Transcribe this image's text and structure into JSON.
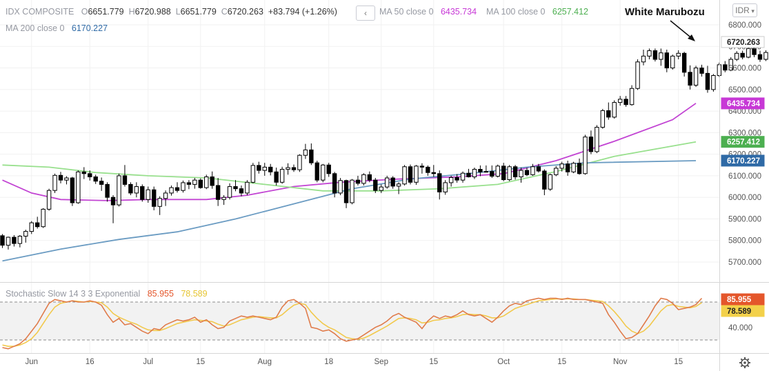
{
  "header": {
    "symbol": "IDX COMPOSITE",
    "open_label": "O",
    "open": "6651.779",
    "high_label": "H",
    "high": "6720.988",
    "low_label": "L",
    "low": "6651.779",
    "close_label": "C",
    "close": "6720.263",
    "change": "+83.794 (+1.26%)",
    "collapse_icon": "chevron-left-icon",
    "ma50_label": "MA 50 close 0",
    "ma50_value": "6435.734",
    "ma100_label": "MA 100 close 0",
    "ma100_value": "6257.412",
    "ma200_label": "MA 200 close 0",
    "ma200_value": "6170.227",
    "currency": "IDR"
  },
  "annotation": "White Marubozu",
  "stochastic": {
    "label": "Stochastic Slow 14 3 3 Exponential",
    "k_value": "85.955",
    "d_value": "78.589"
  },
  "footer": {
    "settings_icon": "gear-icon"
  },
  "colors": {
    "up": "#ffffff",
    "down": "#000000",
    "ma50": "#c244d3",
    "ma100": "#98e08d",
    "ma200": "#6a9bc2",
    "stoch_k": "#e07b4a",
    "stoch_d": "#f2c94c",
    "label_ma50": "#c738d6",
    "label_ma100": "#4caf50",
    "label_ma200": "#2f6aa6",
    "label_k": "#e4562b",
    "label_d": "#f3d14a"
  },
  "chart_data": {
    "type": "candlestick",
    "y_ticks": [
      5700,
      5800,
      5900,
      6000,
      6100,
      6200,
      6300,
      6400,
      6500,
      6600,
      6700,
      6800
    ],
    "y_tick_labels": [
      "5700.000",
      "5800.000",
      "5900.000",
      "6000.000",
      "6100.000",
      "6200.000",
      "6300.000",
      "6400.000",
      "6500.000",
      "6600.000",
      "6700.000",
      "6800.000"
    ],
    "ylim": [
      5640,
      6880
    ],
    "x_tick_labels": [
      {
        "label": "Jun",
        "i": 5
      },
      {
        "label": "16",
        "i": 15
      },
      {
        "label": "Jul",
        "i": 25
      },
      {
        "label": "15",
        "i": 34
      },
      {
        "label": "Aug",
        "i": 45
      },
      {
        "label": "18",
        "i": 56
      },
      {
        "label": "Sep",
        "i": 65
      },
      {
        "label": "15",
        "i": 74
      },
      {
        "label": "Oct",
        "i": 86
      },
      {
        "label": "15",
        "i": 96
      },
      {
        "label": "Nov",
        "i": 106
      },
      {
        "label": "15",
        "i": 116
      }
    ],
    "candles": [
      [
        5822,
        5830,
        5765,
        5778
      ],
      [
        5778,
        5818,
        5758,
        5815
      ],
      [
        5815,
        5825,
        5772,
        5786
      ],
      [
        5786,
        5825,
        5768,
        5820
      ],
      [
        5820,
        5850,
        5790,
        5842
      ],
      [
        5842,
        5890,
        5830,
        5882
      ],
      [
        5882,
        5910,
        5855,
        5864
      ],
      [
        5864,
        5950,
        5858,
        5945
      ],
      [
        5945,
        6040,
        5938,
        6032
      ],
      [
        6032,
        6110,
        6020,
        6102
      ],
      [
        6102,
        6118,
        6065,
        6080
      ],
      [
        6080,
        6098,
        6060,
        6090
      ],
      [
        6090,
        6095,
        5960,
        5975
      ],
      [
        5975,
        6125,
        5970,
        6118
      ],
      [
        6118,
        6140,
        6085,
        6110
      ],
      [
        6110,
        6125,
        6078,
        6095
      ],
      [
        6095,
        6105,
        6062,
        6075
      ],
      [
        6075,
        6092,
        6030,
        6060
      ],
      [
        6060,
        6070,
        5980,
        6000
      ],
      [
        6000,
        6010,
        5880,
        5965
      ],
      [
        5965,
        6110,
        5958,
        6100
      ],
      [
        6100,
        6150,
        6050,
        6060
      ],
      [
        6060,
        6070,
        6010,
        6020
      ],
      [
        6020,
        6070,
        6000,
        6050
      ],
      [
        6050,
        6060,
        5980,
        5990
      ],
      [
        5990,
        6050,
        5975,
        6035
      ],
      [
        6035,
        6050,
        5940,
        5958
      ],
      [
        5958,
        6005,
        5918,
        5995
      ],
      [
        5995,
        6032,
        5960,
        6020
      ],
      [
        6020,
        6055,
        6008,
        6045
      ],
      [
        6045,
        6070,
        6022,
        6032
      ],
      [
        6032,
        6078,
        6022,
        6068
      ],
      [
        6068,
        6080,
        6038,
        6060
      ],
      [
        6060,
        6090,
        6040,
        6080
      ],
      [
        6080,
        6088,
        6040,
        6045
      ],
      [
        6045,
        6105,
        6038,
        6095
      ],
      [
        6095,
        6120,
        6040,
        6055
      ],
      [
        6055,
        6090,
        5960,
        5990
      ],
      [
        5990,
        6010,
        5965,
        6000
      ],
      [
        6000,
        6065,
        5990,
        6050
      ],
      [
        6050,
        6080,
        6028,
        6040
      ],
      [
        6040,
        6055,
        6005,
        6020
      ],
      [
        6020,
        6080,
        6010,
        6070
      ],
      [
        6070,
        6160,
        6065,
        6148
      ],
      [
        6148,
        6165,
        6110,
        6125
      ],
      [
        6125,
        6160,
        6100,
        6140
      ],
      [
        6140,
        6155,
        6102,
        6118
      ],
      [
        6118,
        6138,
        6055,
        6070
      ],
      [
        6070,
        6142,
        6063,
        6130
      ],
      [
        6130,
        6158,
        6105,
        6138
      ],
      [
        6138,
        6152,
        6118,
        6128
      ],
      [
        6128,
        6200,
        6118,
        6195
      ],
      [
        6195,
        6248,
        6178,
        6220
      ],
      [
        6220,
        6250,
        6150,
        6160
      ],
      [
        6160,
        6170,
        6070,
        6080
      ],
      [
        6080,
        6155,
        6070,
        6150
      ],
      [
        6150,
        6160,
        6095,
        6110
      ],
      [
        6110,
        6118,
        6000,
        6020
      ],
      [
        6020,
        6090,
        6010,
        6078
      ],
      [
        6078,
        6082,
        5950,
        5975
      ],
      [
        5975,
        6085,
        5968,
        6080
      ],
      [
        6080,
        6100,
        6055,
        6065
      ],
      [
        6065,
        6112,
        6055,
        6105
      ],
      [
        6105,
        6120,
        6070,
        6080
      ],
      [
        6080,
        6090,
        6020,
        6032
      ],
      [
        6032,
        6060,
        6020,
        6048
      ],
      [
        6048,
        6100,
        6040,
        6090
      ],
      [
        6090,
        6098,
        6040,
        6052
      ],
      [
        6052,
        6070,
        6015,
        6062
      ],
      [
        6062,
        6150,
        6055,
        6142
      ],
      [
        6142,
        6152,
        6060,
        6070
      ],
      [
        6070,
        6150,
        6058,
        6145
      ],
      [
        6145,
        6158,
        6110,
        6140
      ],
      [
        6140,
        6148,
        6100,
        6115
      ],
      [
        6115,
        6150,
        6095,
        6110
      ],
      [
        6110,
        6125,
        5990,
        6025
      ],
      [
        6025,
        6080,
        6012,
        6068
      ],
      [
        6068,
        6100,
        6050,
        6092
      ],
      [
        6092,
        6108,
        6068,
        6080
      ],
      [
        6080,
        6120,
        6068,
        6112
      ],
      [
        6112,
        6132,
        6092,
        6095
      ],
      [
        6095,
        6138,
        6085,
        6130
      ],
      [
        6130,
        6148,
        6098,
        6118
      ],
      [
        6118,
        6148,
        6115,
        6120
      ],
      [
        6120,
        6148,
        6090,
        6098
      ],
      [
        6098,
        6152,
        6092,
        6145
      ],
      [
        6145,
        6160,
        6075,
        6082
      ],
      [
        6082,
        6150,
        6075,
        6142
      ],
      [
        6142,
        6150,
        6082,
        6095
      ],
      [
        6095,
        6138,
        6068,
        6125
      ],
      [
        6125,
        6138,
        6098,
        6105
      ],
      [
        6105,
        6155,
        6100,
        6142
      ],
      [
        6142,
        6155,
        6115,
        6122
      ],
      [
        6122,
        6130,
        6010,
        6038
      ],
      [
        6038,
        6110,
        6030,
        6105
      ],
      [
        6105,
        6145,
        6098,
        6135
      ],
      [
        6135,
        6165,
        6120,
        6155
      ],
      [
        6155,
        6170,
        6100,
        6118
      ],
      [
        6118,
        6165,
        6112,
        6158
      ],
      [
        6158,
        6180,
        6105,
        6110
      ],
      [
        6110,
        6290,
        6105,
        6280
      ],
      [
        6280,
        6310,
        6200,
        6212
      ],
      [
        6212,
        6335,
        6205,
        6325
      ],
      [
        6325,
        6410,
        6318,
        6402
      ],
      [
        6402,
        6440,
        6360,
        6372
      ],
      [
        6372,
        6450,
        6365,
        6440
      ],
      [
        6440,
        6470,
        6425,
        6455
      ],
      [
        6455,
        6470,
        6420,
        6430
      ],
      [
        6430,
        6520,
        6425,
        6505
      ],
      [
        6505,
        6640,
        6498,
        6628
      ],
      [
        6628,
        6685,
        6612,
        6655
      ],
      [
        6655,
        6690,
        6640,
        6680
      ],
      [
        6680,
        6690,
        6630,
        6640
      ],
      [
        6640,
        6690,
        6610,
        6670
      ],
      [
        6670,
        6685,
        6580,
        6600
      ],
      [
        6600,
        6662,
        6592,
        6655
      ],
      [
        6655,
        6682,
        6640,
        6668
      ],
      [
        6668,
        6675,
        6560,
        6580
      ],
      [
        6580,
        6612,
        6500,
        6520
      ],
      [
        6520,
        6610,
        6512,
        6600
      ],
      [
        6600,
        6615,
        6560,
        6575
      ],
      [
        6575,
        6610,
        6485,
        6500
      ],
      [
        6500,
        6572,
        6490,
        6565
      ],
      [
        6565,
        6625,
        6558,
        6615
      ],
      [
        6615,
        6632,
        6580,
        6590
      ],
      [
        6590,
        6650,
        6585,
        6640
      ],
      [
        6640,
        6678,
        6632,
        6668
      ],
      [
        6668,
        6680,
        6640,
        6650
      ],
      [
        6650,
        6702,
        6645,
        6690
      ],
      [
        6690,
        6712,
        6650,
        6662
      ],
      [
        6662,
        6680,
        6628,
        6640
      ],
      [
        6640,
        6682,
        6632,
        6672
      ],
      [
        6672,
        6680,
        6615,
        6630
      ],
      [
        6630,
        6662,
        6610,
        6652
      ],
      [
        6652,
        6721,
        6652,
        6720
      ]
    ],
    "ma_series": [
      {
        "name": "MA 50 close 0",
        "value_label": "6435.734",
        "points": [
          [
            0,
            6080
          ],
          [
            5,
            6020
          ],
          [
            10,
            5990
          ],
          [
            18,
            5985
          ],
          [
            25,
            5990
          ],
          [
            35,
            5990
          ],
          [
            42,
            6010
          ],
          [
            50,
            6050
          ],
          [
            58,
            6070
          ],
          [
            68,
            6085
          ],
          [
            78,
            6095
          ],
          [
            86,
            6110
          ],
          [
            95,
            6170
          ],
          [
            105,
            6260
          ],
          [
            115,
            6360
          ],
          [
            119,
            6436
          ]
        ]
      },
      {
        "name": "MA 100 close 0",
        "value_label": "6257.412",
        "points": [
          [
            0,
            6150
          ],
          [
            8,
            6140
          ],
          [
            16,
            6115
          ],
          [
            25,
            6100
          ],
          [
            35,
            6090
          ],
          [
            45,
            6060
          ],
          [
            55,
            6030
          ],
          [
            65,
            6030
          ],
          [
            75,
            6040
          ],
          [
            85,
            6060
          ],
          [
            95,
            6120
          ],
          [
            105,
            6190
          ],
          [
            119,
            6257
          ]
        ]
      },
      {
        "name": "MA 200 close 0",
        "value_label": "6170.227",
        "points": [
          [
            0,
            5705
          ],
          [
            10,
            5760
          ],
          [
            20,
            5805
          ],
          [
            30,
            5840
          ],
          [
            40,
            5900
          ],
          [
            50,
            5970
          ],
          [
            60,
            6040
          ],
          [
            70,
            6085
          ],
          [
            80,
            6110
          ],
          [
            90,
            6140
          ],
          [
            100,
            6160
          ],
          [
            119,
            6170
          ]
        ]
      }
    ],
    "stochastic": {
      "ylim": [
        0,
        100
      ],
      "levels": [
        80,
        20
      ],
      "y_tick": 40,
      "y_tick_label": "40.000",
      "k": [
        8,
        6,
        10,
        14,
        22,
        34,
        46,
        62,
        78,
        84,
        82,
        80,
        82,
        80,
        80,
        82,
        80,
        75,
        60,
        48,
        54,
        44,
        46,
        40,
        34,
        30,
        38,
        36,
        44,
        48,
        52,
        50,
        52,
        56,
        48,
        52,
        44,
        38,
        40,
        50,
        54,
        58,
        56,
        58,
        56,
        54,
        52,
        56,
        72,
        82,
        84,
        78,
        70,
        40,
        38,
        34,
        36,
        30,
        22,
        18,
        20,
        22,
        28,
        34,
        40,
        44,
        50,
        58,
        62,
        56,
        52,
        48,
        38,
        50,
        58,
        54,
        58,
        56,
        60,
        66,
        60,
        58,
        60,
        54,
        48,
        56,
        66,
        74,
        78,
        76,
        82,
        84,
        86,
        84,
        86,
        86,
        84,
        86,
        84,
        84,
        84,
        82,
        80,
        78,
        60,
        48,
        34,
        22,
        24,
        30,
        44,
        58,
        74,
        86,
        84,
        78,
        68,
        70,
        72,
        76,
        86
      ],
      "d": [
        12,
        10,
        10,
        12,
        16,
        22,
        32,
        46,
        60,
        72,
        78,
        80,
        82,
        81,
        80,
        81,
        80,
        79,
        72,
        62,
        56,
        52,
        48,
        45,
        40,
        36,
        35,
        35,
        38,
        42,
        46,
        48,
        50,
        52,
        51,
        50,
        49,
        45,
        42,
        44,
        48,
        52,
        54,
        56,
        57,
        56,
        55,
        55,
        60,
        68,
        75,
        78,
        76,
        64,
        54,
        46,
        40,
        36,
        30,
        24,
        22,
        21,
        23,
        27,
        32,
        37,
        42,
        48,
        54,
        55,
        54,
        52,
        47,
        48,
        51,
        52,
        54,
        55,
        57,
        60,
        61,
        60,
        60,
        58,
        55,
        55,
        58,
        64,
        70,
        73,
        76,
        79,
        82,
        83,
        84,
        85,
        85,
        85,
        85,
        84,
        84,
        83,
        82,
        81,
        74,
        65,
        54,
        42,
        34,
        30,
        34,
        42,
        54,
        66,
        74,
        76,
        73,
        72,
        71,
        73,
        79
      ]
    }
  }
}
